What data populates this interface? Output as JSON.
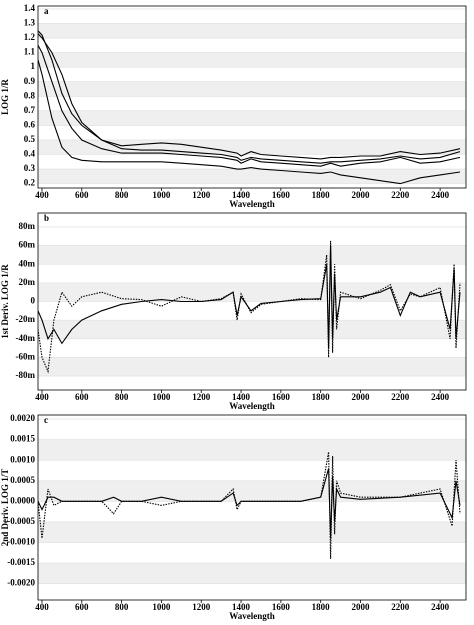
{
  "chart_data": [
    {
      "type": "line",
      "label": "a",
      "ylabel": "LOG 1/R",
      "xlabel": "Wavelength",
      "grid": true,
      "xlim": [
        380,
        2530
      ],
      "ylim": [
        0.17,
        1.42
      ],
      "xticks": [
        400,
        600,
        800,
        1000,
        1200,
        1400,
        1600,
        1800,
        2000,
        2200,
        2400
      ],
      "yticks": [
        0.2,
        0.3,
        0.4,
        0.5,
        0.6,
        0.7,
        0.8,
        0.9,
        1.0,
        1.1,
        1.2,
        1.3,
        1.4
      ],
      "x": [
        380,
        400,
        450,
        500,
        550,
        600,
        700,
        800,
        900,
        1000,
        1100,
        1200,
        1300,
        1380,
        1400,
        1450,
        1500,
        1600,
        1700,
        1800,
        1850,
        1900,
        2000,
        2100,
        2200,
        2300,
        2400,
        2500
      ],
      "series": [
        {
          "color": "#000",
          "style": "solid",
          "values": [
            1.25,
            1.22,
            1.05,
            0.82,
            0.68,
            0.6,
            0.5,
            0.46,
            0.47,
            0.48,
            0.47,
            0.45,
            0.43,
            0.41,
            0.39,
            0.42,
            0.4,
            0.39,
            0.38,
            0.37,
            0.38,
            0.38,
            0.39,
            0.39,
            0.42,
            0.4,
            0.41,
            0.44
          ]
        },
        {
          "color": "#000",
          "style": "solid",
          "values": [
            1.23,
            1.2,
            1.1,
            0.95,
            0.75,
            0.62,
            0.5,
            0.44,
            0.43,
            0.43,
            0.42,
            0.41,
            0.4,
            0.38,
            0.36,
            0.38,
            0.37,
            0.36,
            0.35,
            0.34,
            0.35,
            0.35,
            0.36,
            0.37,
            0.39,
            0.37,
            0.38,
            0.42
          ]
        },
        {
          "color": "#000",
          "style": "solid",
          "values": [
            1.15,
            1.1,
            0.9,
            0.7,
            0.58,
            0.5,
            0.44,
            0.41,
            0.41,
            0.41,
            0.4,
            0.39,
            0.38,
            0.36,
            0.34,
            0.37,
            0.35,
            0.34,
            0.33,
            0.32,
            0.34,
            0.32,
            0.34,
            0.35,
            0.38,
            0.34,
            0.35,
            0.38
          ]
        },
        {
          "color": "#000",
          "style": "solid",
          "values": [
            1.05,
            0.95,
            0.65,
            0.45,
            0.38,
            0.36,
            0.35,
            0.35,
            0.35,
            0.35,
            0.34,
            0.33,
            0.32,
            0.3,
            0.3,
            0.31,
            0.3,
            0.29,
            0.28,
            0.27,
            0.28,
            0.26,
            0.24,
            0.22,
            0.2,
            0.24,
            0.26,
            0.28
          ]
        }
      ]
    },
    {
      "type": "line",
      "label": "b",
      "ylabel": "1st Deriv. LOG 1/R",
      "xlabel": "Wavelength",
      "grid": true,
      "xlim": [
        380,
        2530
      ],
      "ylim": [
        -0.095,
        0.095
      ],
      "xticks": [
        400,
        600,
        800,
        1000,
        1200,
        1400,
        1600,
        1800,
        2000,
        2200,
        2400
      ],
      "yticks": [
        {
          "value": 0.08,
          "label": "80m"
        },
        {
          "value": 0.06,
          "label": "60m"
        },
        {
          "value": 0.04,
          "label": "40m"
        },
        {
          "value": 0.02,
          "label": "20m"
        },
        0,
        {
          "value": -0.02,
          "label": "-20m"
        },
        {
          "value": -0.04,
          "label": "-40m"
        },
        {
          "value": -0.06,
          "label": "-60m"
        },
        {
          "value": -0.08,
          "label": "-80m"
        }
      ],
      "x": [
        380,
        400,
        430,
        460,
        500,
        550,
        600,
        700,
        800,
        900,
        1000,
        1100,
        1200,
        1300,
        1360,
        1380,
        1400,
        1450,
        1500,
        1600,
        1700,
        1800,
        1830,
        1840,
        1850,
        1860,
        1870,
        1880,
        1900,
        2000,
        2100,
        2150,
        2200,
        2250,
        2300,
        2400,
        2450,
        2470,
        2480,
        2500
      ],
      "series": [
        {
          "color": "#000",
          "style": "solid",
          "values": [
            -0.01,
            -0.02,
            -0.04,
            -0.03,
            -0.045,
            -0.03,
            -0.02,
            -0.01,
            -0.003,
            0,
            0.002,
            0,
            0,
            0.002,
            0.01,
            -0.015,
            0.005,
            -0.01,
            -0.002,
            0,
            0.002,
            0.003,
            0.04,
            -0.05,
            0.06,
            -0.04,
            0.03,
            -0.02,
            0.005,
            0.005,
            0.01,
            0.015,
            -0.015,
            0.01,
            0.005,
            0.01,
            -0.03,
            0.035,
            -0.04,
            0.01
          ]
        },
        {
          "color": "#000",
          "style": "dotted",
          "values": [
            -0.03,
            -0.06,
            -0.075,
            -0.02,
            0.01,
            -0.005,
            0.005,
            0.01,
            0.003,
            0.002,
            -0.005,
            0.005,
            0,
            0.003,
            0.01,
            -0.02,
            0.008,
            -0.012,
            -0.003,
            0,
            0.003,
            0.002,
            0.05,
            -0.06,
            0.065,
            -0.055,
            0.04,
            -0.03,
            0.01,
            0.003,
            0.012,
            0.018,
            -0.01,
            0.008,
            0.005,
            0.015,
            -0.04,
            0.04,
            -0.05,
            0.02
          ]
        }
      ]
    },
    {
      "type": "line",
      "label": "c",
      "ylabel": "2nd Deriv. LOG 1/T",
      "xlabel": "Wavelength",
      "grid": true,
      "xlim": [
        380,
        2530
      ],
      "ylim": [
        -0.0024,
        0.0021
      ],
      "xticks": [
        400,
        600,
        800,
        1000,
        1200,
        1400,
        1600,
        1800,
        2000,
        2200,
        2400
      ],
      "yticks": [
        {
          "value": 0.002,
          "label": "0.0020"
        },
        {
          "value": 0.0015,
          "label": "0.0015"
        },
        {
          "value": 0.001,
          "label": "0.0010"
        },
        {
          "value": 0.0005,
          "label": "0.0005"
        },
        {
          "value": 0,
          "label": "0.0000"
        },
        {
          "value": -0.0005,
          "label": "-0.0005"
        },
        {
          "value": -0.001,
          "label": "-0.0010"
        },
        {
          "value": -0.0015,
          "label": "-0.0015"
        },
        {
          "value": -0.002,
          "label": "-0.0020"
        }
      ],
      "x": [
        380,
        400,
        430,
        460,
        500,
        600,
        700,
        760,
        800,
        900,
        1000,
        1100,
        1200,
        1300,
        1360,
        1380,
        1400,
        1500,
        1600,
        1700,
        1800,
        1840,
        1850,
        1860,
        1870,
        1880,
        1900,
        2000,
        2200,
        2400,
        2460,
        2480,
        2500
      ],
      "series": [
        {
          "color": "#000",
          "style": "solid",
          "values": [
            0,
            -0.0002,
            0.0001,
            0.0001,
            0,
            0,
            0,
            0.0001,
            0,
            0,
            0.0001,
            0,
            0,
            0,
            0.0002,
            -0.0001,
            0,
            0,
            0,
            0,
            0.0001,
            0.0008,
            -0.0009,
            0.0006,
            -0.0005,
            0.0003,
            0.0001,
            5e-05,
            0.0001,
            0.0002,
            -0.0004,
            0.0005,
            -0.0001
          ]
        },
        {
          "color": "#000",
          "style": "dotted",
          "values": [
            0,
            -0.0009,
            0.0003,
            -0.0001,
            0,
            0,
            0,
            -0.0003,
            0,
            0,
            -0.0001,
            0,
            0,
            0,
            0.0003,
            -0.0002,
            0,
            0,
            0,
            0,
            0.0001,
            0.0012,
            -0.0014,
            0.0011,
            -0.0008,
            0.0005,
            0.0002,
            0.0001,
            0.0001,
            0.0003,
            -0.0006,
            0.001,
            -0.0003
          ]
        }
      ]
    }
  ]
}
